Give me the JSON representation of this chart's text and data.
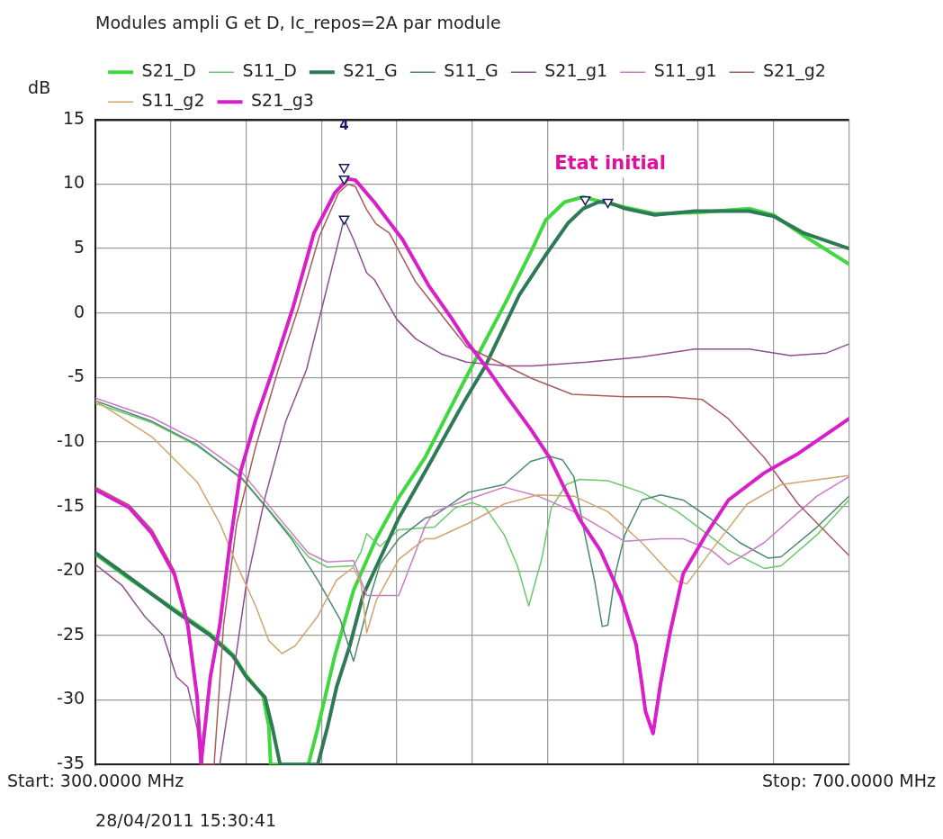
{
  "chart_data": {
    "type": "line",
    "title": "Modules ampli G et D, Ic_repos=2A par module",
    "ylabel": "dB",
    "xlim": [
      300,
      700
    ],
    "xticks": [
      {
        "value": 300,
        "label": "Start: 300.0000 MHz"
      },
      {
        "value": 340,
        "label": null
      },
      {
        "value": 380,
        "label": null
      },
      {
        "value": 420,
        "label": null
      },
      {
        "value": 460,
        "label": null
      },
      {
        "value": 500,
        "label": null
      },
      {
        "value": 540,
        "label": null
      },
      {
        "value": 580,
        "label": null
      },
      {
        "value": 620,
        "label": null
      },
      {
        "value": 660,
        "label": null
      },
      {
        "value": 700,
        "label": "Stop: 700.0000 MHz"
      }
    ],
    "ylim": [
      -35,
      15
    ],
    "yticks": [
      15,
      10,
      5,
      0,
      -5,
      -10,
      -15,
      -20,
      -25,
      -30,
      -35
    ],
    "grid": true,
    "legend": "top",
    "marker": "none",
    "line_style": "solid",
    "annotations": [
      "4",
      "Etat initial",
      "28/04/2011 15:30:41"
    ],
    "series": [
      {
        "name": "S21_D",
        "color": "#3fd83f",
        "x": [
          300,
          318,
          342,
          361,
          373,
          380,
          389,
          392,
          393,
          413,
          418,
          427,
          437,
          449,
          461,
          475,
          496,
          518,
          532,
          539,
          549,
          559,
          564,
          581,
          597,
          620,
          647,
          660,
          676,
          700
        ],
        "values": [
          -18.7,
          -20.6,
          -23.0,
          -24.9,
          -26.5,
          -28.1,
          -29.7,
          -32.0,
          -35,
          -35,
          -32.2,
          -26.6,
          -21.5,
          -17.5,
          -14.3,
          -11.2,
          -5.2,
          0.9,
          5.0,
          7.2,
          8.6,
          9.0,
          8.8,
          8.2,
          7.7,
          7.8,
          8.1,
          7.6,
          6.0,
          3.8
        ]
      },
      {
        "name": "S11_D",
        "color": "#6cc86c",
        "x": [
          300,
          330,
          354,
          378,
          397,
          413,
          423,
          437,
          441,
          444,
          451,
          461,
          480,
          491,
          500,
          507,
          517,
          524,
          530,
          537,
          542,
          550,
          557,
          572,
          590,
          609,
          620,
          636,
          655,
          664,
          683,
          700
        ],
        "values": [
          -7.0,
          -8.5,
          -10.3,
          -12.8,
          -16.1,
          -18.9,
          -19.7,
          -19.6,
          -18.5,
          -17.1,
          -18.1,
          -16.8,
          -16.6,
          -15.1,
          -14.7,
          -15.1,
          -17.2,
          -19.6,
          -22.7,
          -19.0,
          -15.1,
          -13.3,
          -12.9,
          -13.0,
          -13.9,
          -15.4,
          -16.6,
          -18.4,
          -19.8,
          -19.6,
          -17.2,
          -14.5
        ]
      },
      {
        "name": "S21_G",
        "color": "#2f7a56",
        "x": [
          300,
          318,
          342,
          361,
          373,
          380,
          390,
          394,
          398,
          418,
          423,
          428,
          435,
          442,
          461,
          475,
          496,
          507,
          525,
          539,
          551,
          559,
          567,
          572,
          581,
          597,
          618,
          647,
          660,
          676,
          700
        ],
        "values": [
          -18.6,
          -20.5,
          -23.1,
          -25.0,
          -26.6,
          -28.2,
          -29.8,
          -32.2,
          -35,
          -35,
          -32.2,
          -29.0,
          -25.8,
          -21.9,
          -15.9,
          -12.3,
          -6.8,
          -4.1,
          1.4,
          4.5,
          7.0,
          8.1,
          8.6,
          8.6,
          8.1,
          7.6,
          7.9,
          7.9,
          7.5,
          6.2,
          5.0
        ]
      },
      {
        "name": "S11_G",
        "color": "#4a8a70",
        "x": [
          300,
          330,
          354,
          378,
          392,
          404,
          418,
          430,
          437,
          446,
          451,
          461,
          475,
          480,
          498,
          517,
          531,
          541,
          548,
          554,
          559,
          565,
          569,
          572,
          576,
          581,
          590,
          600,
          612,
          627,
          642,
          657,
          664,
          683,
          700
        ],
        "values": [
          -6.8,
          -8.4,
          -10.2,
          -12.9,
          -15.3,
          -17.5,
          -20.7,
          -23.8,
          -27.0,
          -21.9,
          -19.5,
          -17.5,
          -15.9,
          -15.7,
          -13.9,
          -13.3,
          -11.5,
          -11.1,
          -11.4,
          -12.7,
          -16.6,
          -20.8,
          -24.3,
          -24.2,
          -20.2,
          -17.2,
          -14.5,
          -14.1,
          -14.5,
          -16.0,
          -17.8,
          -19.0,
          -18.9,
          -16.6,
          -14.2
        ]
      },
      {
        "name": "S21_g1",
        "color": "#8e4f8e",
        "x": [
          300,
          314,
          326,
          336,
          343,
          349,
          354,
          356,
          366,
          373,
          380,
          390,
          401,
          412,
          424,
          432,
          437,
          444,
          448,
          460,
          470,
          484,
          497,
          518,
          532,
          561,
          590,
          618,
          647,
          669,
          688,
          700
        ],
        "values": [
          -19.5,
          -21.1,
          -23.5,
          -25.0,
          -28.2,
          -29.0,
          -32.2,
          -35,
          -35,
          -28.2,
          -21.1,
          -14.3,
          -8.4,
          -4.4,
          2.6,
          7.3,
          5.7,
          3.1,
          2.6,
          -0.5,
          -2.0,
          -3.2,
          -3.8,
          -4.1,
          -4.1,
          -3.8,
          -3.4,
          -2.8,
          -2.8,
          -3.3,
          -3.1,
          -2.4
        ]
      },
      {
        "name": "S11_g1",
        "color": "#c77cc7",
        "x": [
          300,
          330,
          354,
          378,
          397,
          413,
          423,
          437,
          444,
          461,
          470,
          475,
          480,
          497,
          517,
          535,
          554,
          581,
          600,
          612,
          627,
          636,
          655,
          683,
          700
        ],
        "values": [
          -6.6,
          -8.1,
          -9.9,
          -12.4,
          -15.8,
          -18.6,
          -19.3,
          -19.2,
          -21.9,
          -21.9,
          -18.5,
          -16.5,
          -15.4,
          -14.5,
          -13.5,
          -14.2,
          -15.4,
          -17.7,
          -17.5,
          -17.5,
          -18.4,
          -19.5,
          -17.8,
          -14.2,
          -12.7
        ]
      },
      {
        "name": "S21_g2",
        "color": "#a85c5c",
        "x": [
          300,
          318,
          330,
          342,
          349,
          354,
          357,
          363,
          368,
          375,
          385,
          397,
          408,
          419,
          429,
          434,
          438,
          444,
          449,
          456,
          470,
          497,
          518,
          532,
          553,
          581,
          604,
          622,
          636,
          655,
          673,
          700
        ],
        "values": [
          -13.5,
          -14.9,
          -16.8,
          -20.0,
          -23.8,
          -29.5,
          -35,
          -35,
          -24.2,
          -16.3,
          -10.4,
          -4.4,
          0.5,
          6.0,
          9.3,
          10.0,
          9.8,
          8.0,
          6.9,
          6.2,
          2.4,
          -2.6,
          -4.1,
          -5.1,
          -6.3,
          -6.5,
          -6.5,
          -6.7,
          -8.2,
          -11.2,
          -14.8,
          -18.8
        ]
      },
      {
        "name": "S11_g2",
        "color": "#d2a46e",
        "x": [
          300,
          330,
          354,
          366,
          375,
          385,
          392,
          399,
          406,
          418,
          428,
          437,
          441,
          444,
          449,
          461,
          475,
          480,
          498,
          517,
          535,
          554,
          572,
          590,
          609,
          614,
          627,
          646,
          664,
          700
        ],
        "values": [
          -6.8,
          -9.6,
          -13.1,
          -16.3,
          -19.5,
          -22.7,
          -25.4,
          -26.4,
          -25.8,
          -23.5,
          -20.7,
          -19.7,
          -21.0,
          -24.8,
          -22.3,
          -19.1,
          -17.5,
          -17.5,
          -16.3,
          -14.8,
          -14.1,
          -14.2,
          -15.4,
          -17.8,
          -20.8,
          -21.0,
          -18.4,
          -14.8,
          -13.3,
          -12.6
        ]
      },
      {
        "name": "S21_g3",
        "color": "#d81fc8",
        "x": [
          300,
          318,
          330,
          342,
          349,
          354,
          356,
          361,
          366,
          371,
          377,
          385,
          394,
          405,
          416,
          427,
          434,
          438,
          448,
          463,
          477,
          489,
          497,
          507,
          518,
          531,
          541,
          557,
          568,
          579,
          587,
          590,
          592,
          596,
          600,
          605,
          612,
          624,
          636,
          655,
          673,
          700
        ],
        "values": [
          -13.7,
          -15.1,
          -17.1,
          -20.3,
          -24.2,
          -29.8,
          -35,
          -28.2,
          -24.2,
          -18.3,
          -12.3,
          -8.3,
          -4.5,
          0.5,
          6.2,
          9.3,
          10.4,
          10.3,
          8.6,
          5.7,
          2.1,
          -0.4,
          -2.2,
          -4.1,
          -6.4,
          -9.0,
          -11.2,
          -16.0,
          -18.4,
          -22.0,
          -25.7,
          -28.7,
          -30.9,
          -32.6,
          -28.7,
          -24.8,
          -20.2,
          -17.2,
          -14.5,
          -12.4,
          -10.9,
          -8.2
        ]
      },
      {
        "type": "scatter",
        "marker": "triangle",
        "color": "#1a1a5e",
        "x": [
          432,
          432,
          432,
          560,
          572
        ],
        "values": [
          11.3,
          10.4,
          7.3,
          8.8,
          8.6
        ]
      }
    ]
  }
}
